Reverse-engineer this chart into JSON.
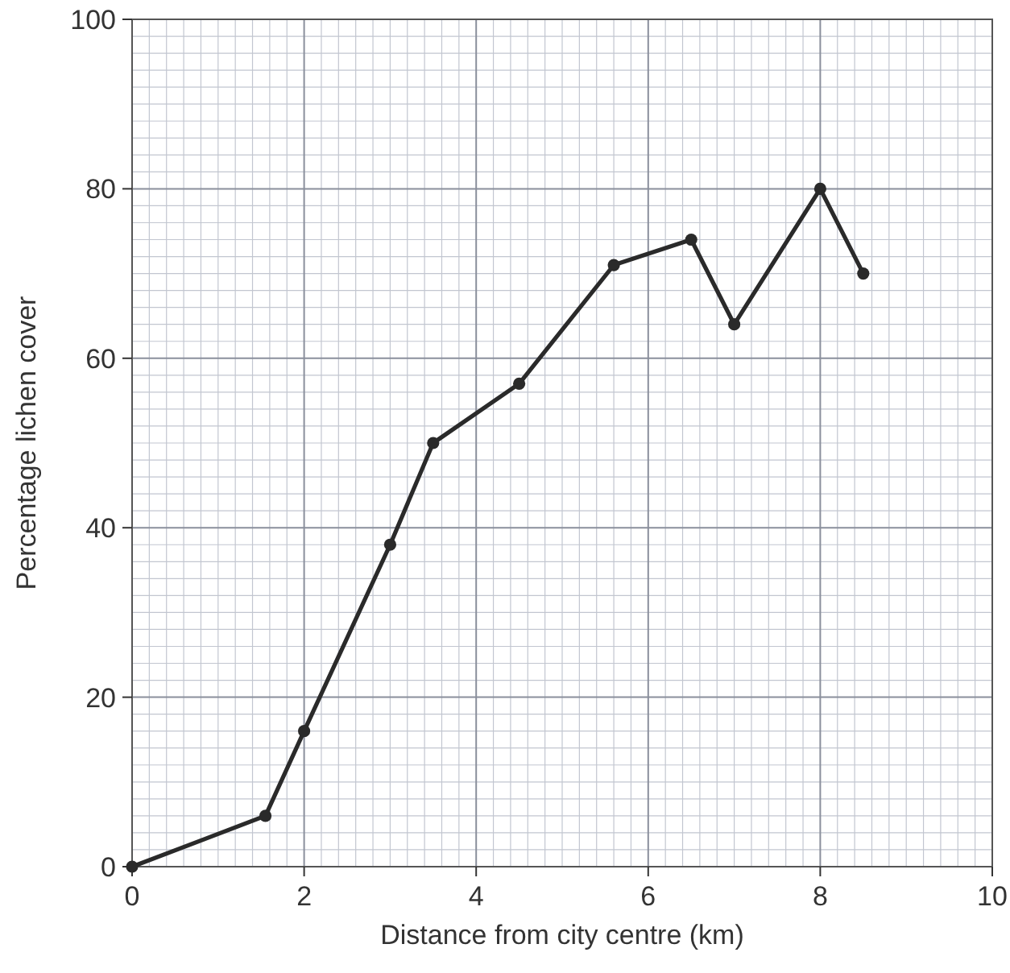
{
  "chart_data": {
    "type": "line",
    "xlabel": "Distance from city centre (km)",
    "ylabel": "Percentage lichen cover",
    "x": [
      0,
      1.55,
      2,
      3,
      3.5,
      4.5,
      5.6,
      6.5,
      7,
      8,
      8.5
    ],
    "series": [
      {
        "color": "#2a2a2a",
        "values": [
          0,
          6,
          16,
          38,
          50,
          57,
          71,
          74,
          64,
          80,
          70
        ]
      }
    ],
    "xlim": [
      0,
      10
    ],
    "ylim": [
      0,
      100
    ],
    "xticks": [
      0,
      2,
      4,
      6,
      8,
      10
    ],
    "yticks": [
      0,
      20,
      40,
      60,
      80,
      100
    ],
    "grid": true,
    "marker": "circle",
    "line_style": "solid"
  }
}
